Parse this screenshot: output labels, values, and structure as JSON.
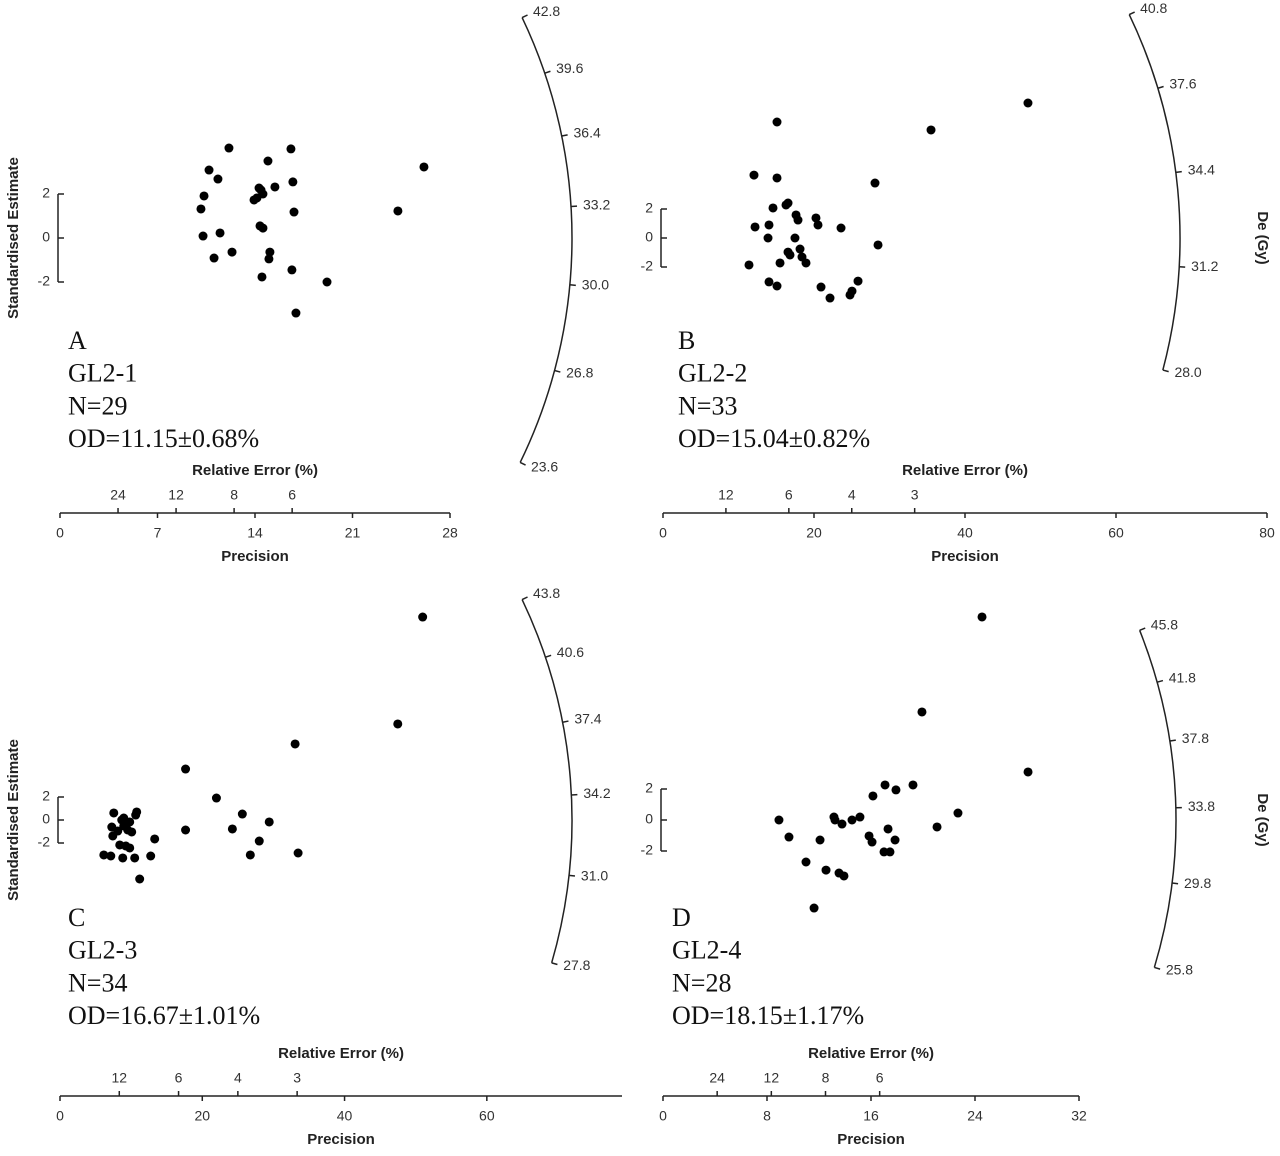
{
  "chart_data": [
    {
      "type": "radial",
      "label": "A",
      "sample": "GL2-1",
      "n": "N=29",
      "od": "OD=11.15±0.68%",
      "xlabel": "Precision",
      "xlim": [
        0,
        28
      ],
      "xticks": [
        0,
        7,
        14,
        21,
        28
      ],
      "re_label": "Relative Error (%)",
      "re_ticks": [
        24,
        12,
        8,
        6
      ],
      "ylabel": "Standardised Estimate",
      "yticks": [
        -2,
        0,
        2
      ],
      "rlim": [
        23.6,
        42.8
      ],
      "rticks": [
        42.8,
        39.6,
        36.4,
        33.2,
        {
          "value": 30,
          "label": "30.0"
        },
        26.8,
        23.6
      ],
      "color": "#000000",
      "x": [
        12.13,
        10.7,
        11.34,
        10.34,
        10.12,
        10.27,
        11.49,
        11.06,
        12.35,
        14.93,
        16.58,
        16.72,
        15.43,
        14.29,
        14.57,
        13.93,
        14.36,
        14.57,
        15.07,
        15.0,
        14.5,
        16.65,
        16.8,
        16.94,
        19.17,
        24.26,
        26.13,
        14.43,
        14.14
      ],
      "y": [
        4.09,
        3.09,
        2.68,
        1.91,
        1.32,
        0.09,
        0.23,
        -0.91,
        -0.64,
        3.5,
        4.05,
        2.55,
        2.32,
        2.27,
        2.0,
        1.73,
        0.55,
        0.45,
        -0.64,
        -0.95,
        -1.77,
        -1.45,
        1.18,
        -3.41,
        -2.0,
        1.23,
        3.23,
        2.18,
        1.82
      ]
    },
    {
      "type": "radial",
      "label": "B",
      "sample": "GL2-2",
      "n": "N=33",
      "od": "OD=15.04±0.82%",
      "xlabel": "Precision",
      "xlim": [
        0,
        80
      ],
      "xticks": [
        0,
        20,
        40,
        60,
        80
      ],
      "re_label": "Relative Error (%)",
      "re_ticks": [
        12,
        6,
        4,
        3
      ],
      "yticks": [
        -2,
        0,
        2
      ],
      "rlabel": "De (Gy)",
      "rlim": [
        28.0,
        40.8
      ],
      "rticks": [
        40.8,
        37.6,
        34.4,
        31.2,
        {
          "value": 28,
          "label": "28.0"
        }
      ],
      "color": "#000000",
      "x": [
        15.1,
        12.05,
        15.1,
        35.5,
        48.34,
        28.08,
        14.57,
        16.29,
        16.56,
        17.62,
        17.88,
        20.26,
        20.53,
        23.58,
        12.19,
        14.04,
        13.91,
        17.48,
        18.15,
        16.56,
        16.82,
        18.41,
        18.94,
        15.5,
        11.39,
        14.04,
        15.1,
        20.93,
        22.12,
        24.77,
        25.03,
        25.83,
        28.48
      ],
      "y": [
        8.0,
        4.34,
        4.14,
        7.45,
        9.31,
        3.79,
        2.07,
        2.28,
        2.41,
        1.59,
        1.24,
        1.38,
        0.9,
        0.69,
        0.76,
        0.9,
        0.0,
        0.0,
        -0.76,
        -0.97,
        -1.17,
        -1.31,
        -1.72,
        -1.72,
        -1.86,
        -3.03,
        -3.31,
        -3.38,
        -4.14,
        -3.93,
        -3.66,
        -2.97,
        -0.48
      ]
    },
    {
      "type": "radial",
      "label": "C",
      "sample": "GL2-3",
      "n": "N=34",
      "od": "OD=16.67±1.01%",
      "xlabel": "Precision",
      "xlim": [
        0,
        79
      ],
      "xticks": [
        0,
        20,
        40,
        60
      ],
      "re_label": "Relative Error (%)",
      "re_ticks": [
        12,
        6,
        4,
        3
      ],
      "ylabel": "Standardised Estimate",
      "yticks": [
        -2,
        0,
        2
      ],
      "rlim": [
        27.8,
        43.8
      ],
      "rticks": [
        43.8,
        40.6,
        37.4,
        34.2,
        {
          "value": 31,
          "label": "31.0"
        },
        27.8
      ],
      "color": "#000000",
      "x": [
        50.98,
        47.48,
        33.05,
        17.65,
        21.99,
        25.63,
        29.41,
        17.65,
        24.23,
        28.01,
        26.75,
        33.47,
        13.31,
        12.75,
        11.2,
        6.16,
        7.14,
        8.82,
        10.5,
        7.42,
        7.28,
        7.56,
        8.68,
        8.96,
        8.12,
        9.52,
        10.08,
        9.24,
        8.4,
        9.8,
        10.64,
        10.78,
        8.96,
        9.8
      ],
      "y": [
        17.65,
        8.35,
        6.61,
        4.43,
        1.91,
        0.52,
        -0.17,
        -0.87,
        -0.78,
        -1.83,
        -3.04,
        -2.87,
        -1.65,
        -3.13,
        -5.13,
        -3.04,
        -3.13,
        -3.3,
        -3.3,
        -1.39,
        -0.61,
        0.61,
        0.0,
        -0.52,
        -0.96,
        -0.87,
        -1.04,
        -2.26,
        -2.17,
        -2.43,
        0.43,
        0.7,
        0.17,
        -0.17
      ]
    },
    {
      "type": "radial",
      "label": "D",
      "sample": "GL2-4",
      "n": "N=28",
      "od": "OD=18.15±1.17%",
      "xlabel": "Precision",
      "xlim": [
        0,
        32
      ],
      "xticks": [
        0,
        8,
        16,
        24,
        32
      ],
      "re_label": "Relative Error (%)",
      "re_ticks": [
        24,
        12,
        8,
        6
      ],
      "yticks": [
        -2,
        0,
        2
      ],
      "rlabel": "De (Gy)",
      "rlim": [
        25.8,
        45.8
      ],
      "rticks": [
        45.8,
        41.8,
        37.8,
        33.8,
        29.8,
        25.8
      ],
      "color": "#000000",
      "x": [
        24.54,
        19.92,
        28.08,
        19.23,
        17.08,
        17.92,
        16.15,
        21.08,
        22.69,
        13.15,
        15.15,
        13.23,
        14.54,
        13.77,
        8.92,
        9.69,
        12.08,
        15.85,
        16.08,
        17.85,
        17.31,
        11.0,
        12.54,
        13.54,
        13.92,
        17.0,
        17.46,
        11.62
      ],
      "y": [
        13.1,
        6.97,
        3.1,
        2.26,
        2.26,
        1.94,
        1.55,
        -0.45,
        0.45,
        0.19,
        0.19,
        0.0,
        0.0,
        -0.26,
        0.0,
        -1.1,
        -1.29,
        -1.03,
        -1.42,
        -1.29,
        -0.58,
        -2.71,
        -3.23,
        -3.42,
        -3.61,
        -2.06,
        -2.06,
        -5.68
      ]
    }
  ]
}
